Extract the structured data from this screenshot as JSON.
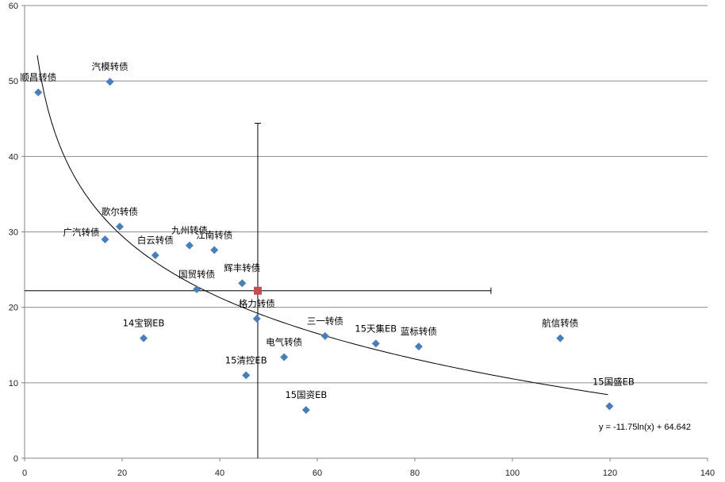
{
  "chart_data": {
    "type": "scatter",
    "xlim": [
      0,
      140
    ],
    "ylim": [
      0,
      60
    ],
    "x_ticks": [
      0,
      20,
      40,
      60,
      80,
      100,
      120,
      140
    ],
    "y_ticks": [
      0,
      10,
      20,
      30,
      40,
      50,
      60
    ],
    "grid": "horizontal",
    "marker_color": "#4a7ebb",
    "center_color": "#c0504d",
    "points": [
      {
        "label": "顺昌转债",
        "x": 2.8,
        "y": 48.5
      },
      {
        "label": "汽模转债",
        "x": 17.5,
        "y": 49.9
      },
      {
        "label": "歌尔转债",
        "x": 19.5,
        "y": 30.7
      },
      {
        "label": "广汽转债",
        "x": 16.5,
        "y": 29.0
      },
      {
        "label": "白云转债",
        "x": 26.8,
        "y": 26.9
      },
      {
        "label": "九州转债",
        "x": 33.8,
        "y": 28.2
      },
      {
        "label": "江南转债",
        "x": 38.9,
        "y": 27.6
      },
      {
        "label": "辉丰转债",
        "x": 44.6,
        "y": 23.2
      },
      {
        "label": "国贸转债",
        "x": 35.3,
        "y": 22.4
      },
      {
        "label": "格力转债",
        "x": 47.6,
        "y": 18.5
      },
      {
        "label": "14宝钢EB",
        "x": 24.4,
        "y": 15.9
      },
      {
        "label": "15清控EB",
        "x": 45.4,
        "y": 11.0
      },
      {
        "label": "电气转债",
        "x": 53.2,
        "y": 13.4
      },
      {
        "label": "三一转债",
        "x": 61.6,
        "y": 16.2
      },
      {
        "label": "15天集EB",
        "x": 72.0,
        "y": 15.2
      },
      {
        "label": "蓝标转债",
        "x": 80.8,
        "y": 14.8
      },
      {
        "label": "航信转债",
        "x": 109.8,
        "y": 15.9
      },
      {
        "label": "15国盛EB",
        "x": 119.9,
        "y": 6.9
      },
      {
        "label": "15国资EB",
        "x": 57.7,
        "y": 6.4
      }
    ],
    "center_point": {
      "x": 47.8,
      "y": 22.2
    },
    "crosshair": {
      "x_range": [
        0,
        95.6
      ],
      "y_range": [
        0,
        44.4
      ]
    },
    "trendline": {
      "equation": "y = -11.75ln(x) + 64.642",
      "a": -11.75,
      "b": 64.642,
      "x_range": [
        2.6,
        119.6
      ]
    }
  }
}
